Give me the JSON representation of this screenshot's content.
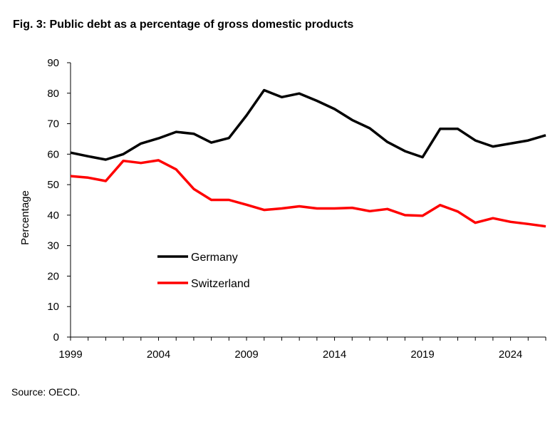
{
  "title": "Fig. 3: Public debt as a percentage of gross domestic products",
  "source": "Source: OECD.",
  "chart_data": {
    "type": "line",
    "title": "Fig. 3: Public debt as a percentage of gross domestic products",
    "xlabel": "",
    "ylabel": "Percentage",
    "xlim": [
      1999,
      2026
    ],
    "ylim": [
      0,
      90
    ],
    "x_ticks": [
      1999,
      2004,
      2009,
      2014,
      2019,
      2024
    ],
    "y_ticks": [
      0,
      10,
      20,
      30,
      40,
      50,
      60,
      70,
      80,
      90
    ],
    "grid": false,
    "legend": "center-left",
    "x": [
      1999,
      2000,
      2001,
      2002,
      2003,
      2004,
      2005,
      2006,
      2007,
      2008,
      2009,
      2010,
      2011,
      2012,
      2013,
      2014,
      2015,
      2016,
      2017,
      2018,
      2019,
      2020,
      2021,
      2022,
      2023,
      2024,
      2025,
      2026
    ],
    "series": [
      {
        "name": "Germany",
        "color": "#000000",
        "values": [
          60.5,
          59.3,
          58.2,
          60.0,
          63.5,
          65.2,
          67.3,
          66.7,
          63.8,
          65.3,
          72.7,
          81.0,
          78.7,
          79.9,
          77.5,
          74.8,
          71.2,
          68.5,
          64.0,
          61.0,
          59.0,
          68.3,
          68.3,
          64.5,
          62.5,
          63.5,
          64.5,
          66.2
        ]
      },
      {
        "name": "Switzerland",
        "color": "#ff0000",
        "values": [
          52.8,
          52.3,
          51.2,
          57.8,
          57.1,
          58.0,
          55.0,
          48.6,
          45.0,
          45.0,
          43.4,
          41.7,
          42.2,
          42.9,
          42.2,
          42.2,
          42.4,
          41.3,
          42.0,
          40.0,
          39.8,
          43.3,
          41.2,
          37.5,
          39.0,
          37.8,
          37.1,
          36.3
        ]
      }
    ]
  }
}
